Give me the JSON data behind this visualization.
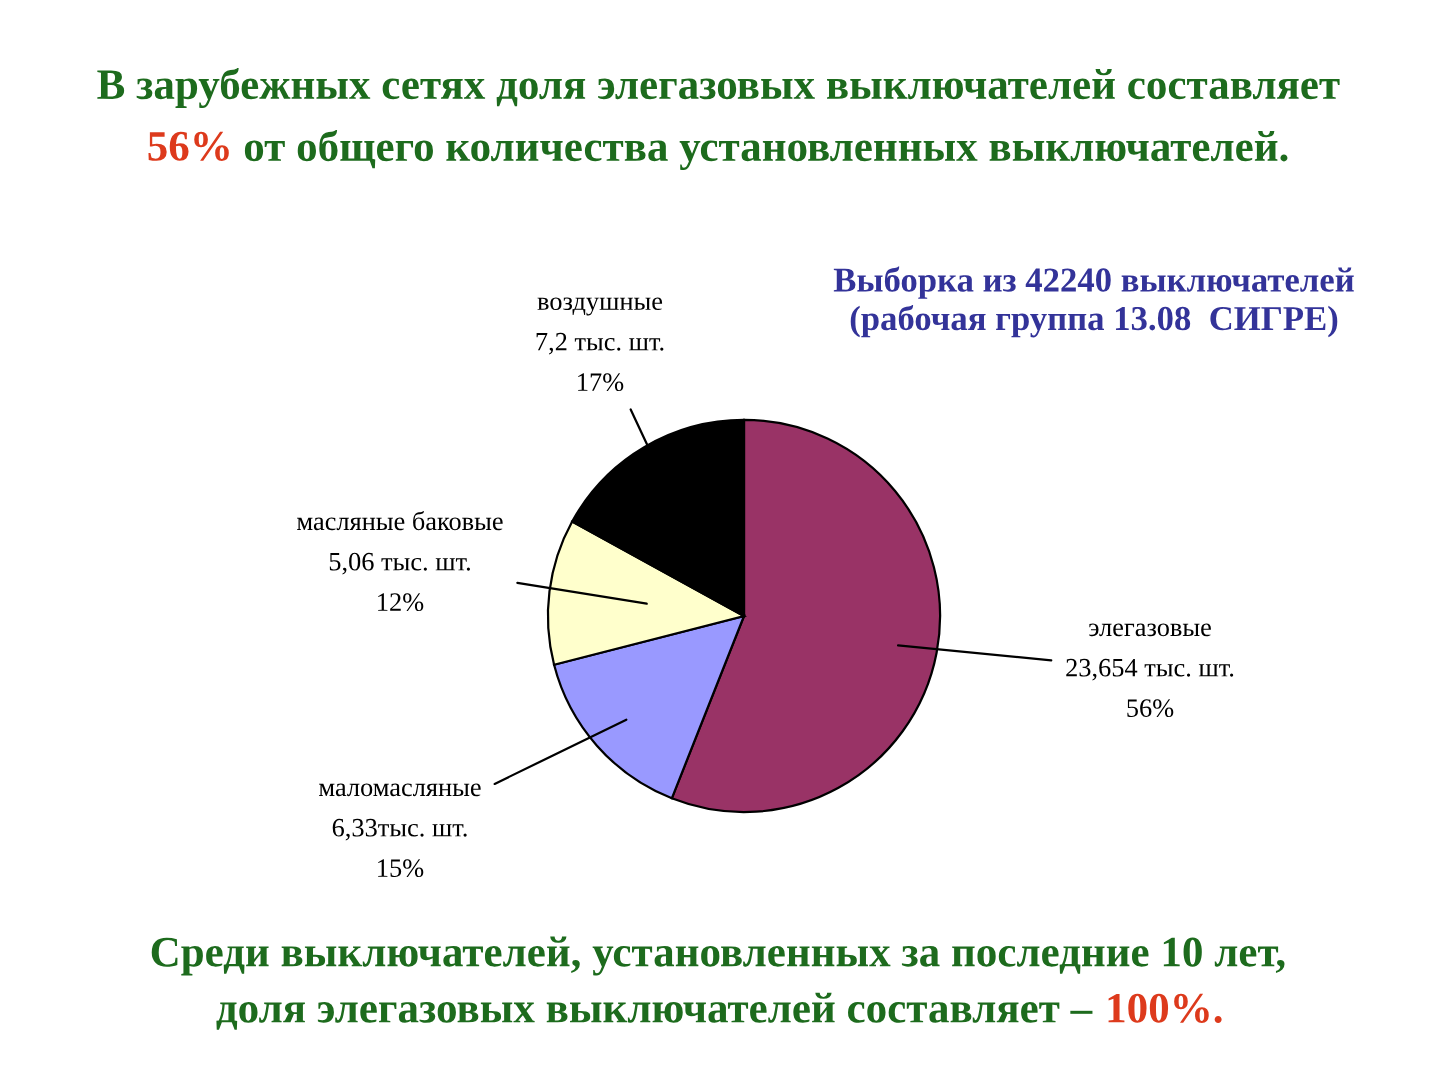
{
  "chart_data": {
    "type": "pie",
    "title": "В зарубежных сетях доля элегазовых выключателей составляет\n56% от общего количества установленных выключателей.",
    "subtitle": "Выборка из 42240 выключателей\n(рабочая группа 13.08  СИГРЕ)",
    "categories": [
      "элегазовые",
      "маломасляные",
      "масляные баковые",
      "воздушные"
    ],
    "values": [
      56,
      15,
      12,
      17
    ],
    "value_labels": [
      "23,654 тыс. шт.\n56%",
      "6,33тыс. шт.\n15%",
      "5,06 тыс. шт.\n12%",
      "7,2 тыс. шт.\n17%"
    ],
    "colors": [
      "#993366",
      "#9999ff",
      "#ffffcc",
      "#000000"
    ],
    "annotations": [
      "Среди выключателей, установленных за последние 10 лет,\nдоля элегазовых выключателей составляет – 100%."
    ]
  }
}
